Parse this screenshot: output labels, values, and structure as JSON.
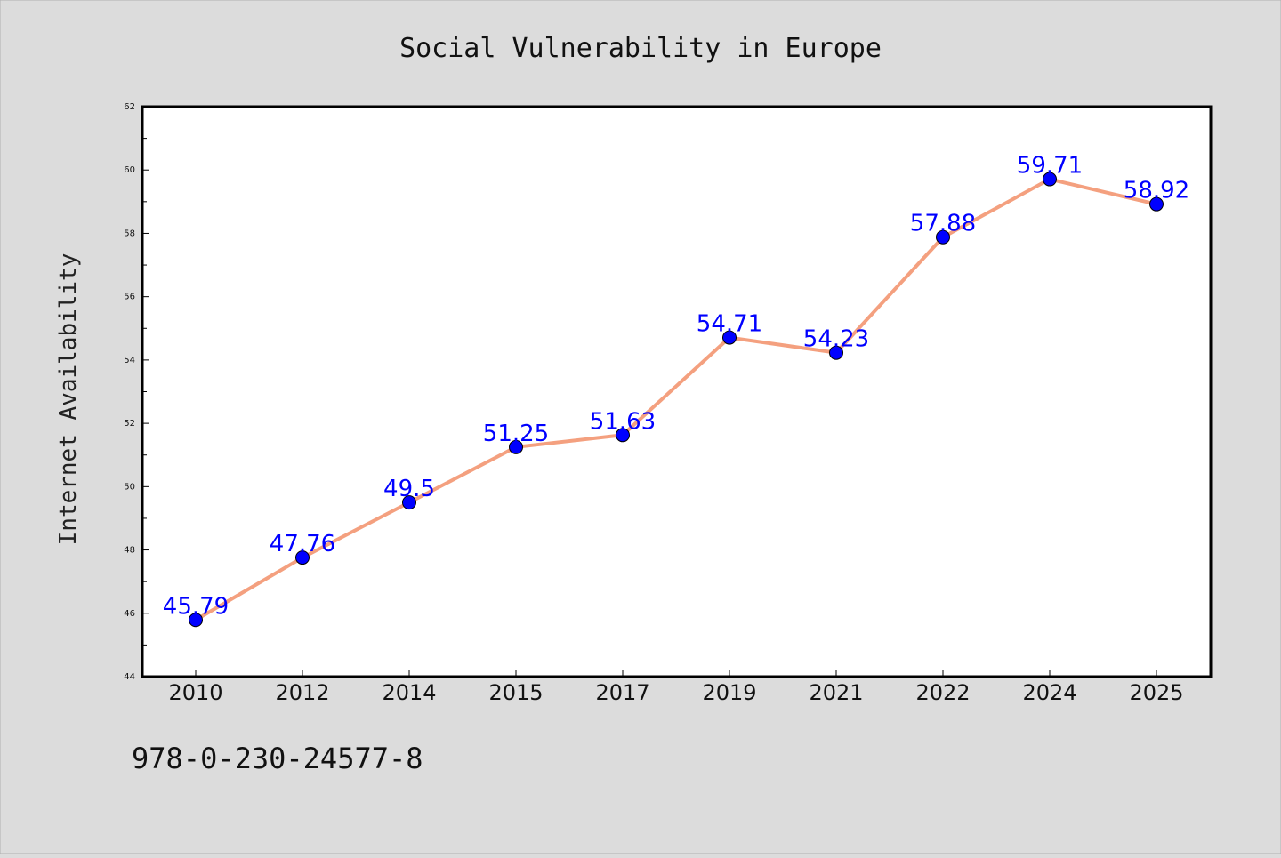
{
  "chart_data": {
    "type": "line",
    "title": "Social Vulnerability in Europe",
    "xlabel": "",
    "ylabel": "Internet Availability",
    "footnote": "978-0-230-24577-8",
    "categories": [
      "2010",
      "2012",
      "2014",
      "2015",
      "2017",
      "2019",
      "2021",
      "2022",
      "2024",
      "2025"
    ],
    "series": [
      {
        "values": [
          45.79,
          47.76,
          49.5,
          51.25,
          51.63,
          54.71,
          54.23,
          57.88,
          59.71,
          58.92
        ],
        "labels": [
          "45.79",
          "47.76",
          "49.5",
          "51.25",
          "51.63",
          "54.71",
          "54.23",
          "57.88",
          "59.71",
          "58.92"
        ],
        "line_color": "#f4a07f",
        "marker_color": "#0000ff",
        "label_color": "#0000ff"
      }
    ],
    "ylim": [
      44,
      62
    ],
    "yticks": [
      "44",
      "46",
      "48",
      "50",
      "52",
      "54",
      "56",
      "58",
      "60",
      "62"
    ],
    "grid": false,
    "legend": "none"
  }
}
